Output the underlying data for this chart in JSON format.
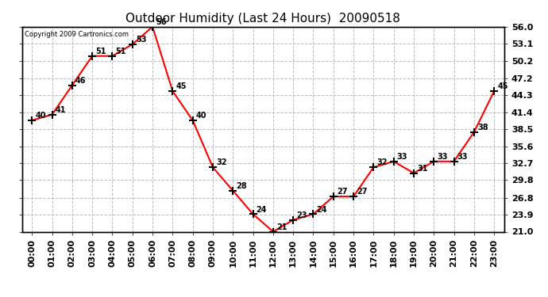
{
  "title": "Outdoor Humidity (Last 24 Hours)  20090518",
  "copyright": "Copyright 2009 Cartronics.com",
  "hours": [
    "00:00",
    "01:00",
    "02:00",
    "03:00",
    "04:00",
    "05:00",
    "06:00",
    "07:00",
    "08:00",
    "09:00",
    "10:00",
    "11:00",
    "12:00",
    "13:00",
    "14:00",
    "15:00",
    "16:00",
    "17:00",
    "18:00",
    "19:00",
    "20:00",
    "21:00",
    "22:00",
    "23:00"
  ],
  "values": [
    40,
    41,
    46,
    51,
    51,
    53,
    56,
    45,
    40,
    32,
    28,
    24,
    21,
    23,
    24,
    27,
    27,
    32,
    33,
    31,
    33,
    33,
    38,
    45
  ],
  "ylim": [
    21.0,
    56.0
  ],
  "yticks": [
    21.0,
    23.9,
    26.8,
    29.8,
    32.7,
    35.6,
    38.5,
    41.4,
    44.3,
    47.2,
    50.2,
    53.1,
    56.0
  ],
  "line_color": "red",
  "bg_color": "white",
  "grid_color": "#bbbbbb",
  "tick_fontsize": 8,
  "title_fontsize": 11,
  "annotation_fontsize": 7,
  "copyright_fontsize": 6
}
